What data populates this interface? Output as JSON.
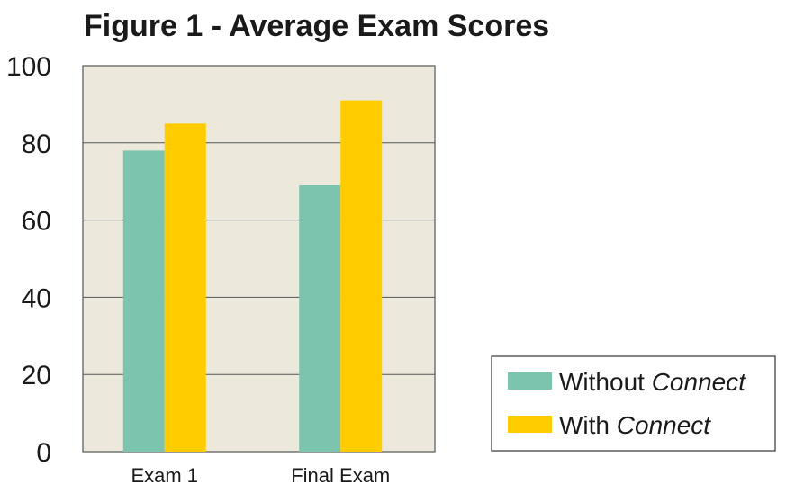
{
  "chart_data": {
    "type": "bar",
    "title": "Figure 1 - Average Exam Scores",
    "xlabel": "",
    "ylabel": "",
    "categories": [
      "Exam 1",
      "Final Exam"
    ],
    "series": [
      {
        "name": "Without Connect",
        "name_parts": [
          "Without ",
          "Connect"
        ],
        "values": [
          78,
          69
        ],
        "color": "#7cc4ae"
      },
      {
        "name": "With Connect",
        "name_parts": [
          "With ",
          "Connect"
        ],
        "values": [
          85,
          91
        ],
        "color": "#ffcc00"
      }
    ],
    "ylim": [
      0,
      100
    ],
    "yticks": [
      "0",
      "20",
      "40",
      "60",
      "80",
      "100"
    ],
    "grid": true,
    "legend_position": "right",
    "plot_background": "#ece8dc"
  }
}
